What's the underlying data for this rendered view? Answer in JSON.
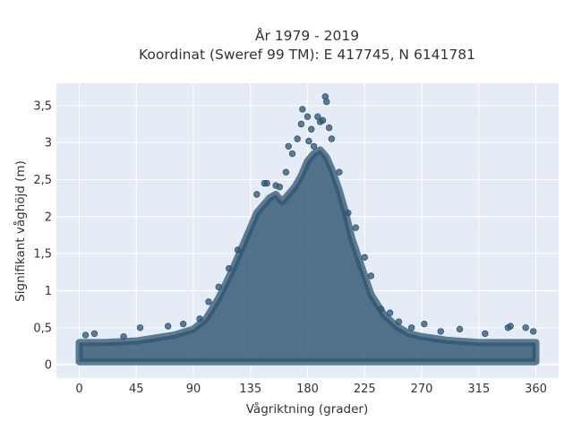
{
  "chart_data": {
    "type": "scatter",
    "title_line1": "År 1979 - 2019",
    "title_line2": "Koordinat (Sweref 99 TM): E 417745, N 6141781",
    "xlabel": "Vågriktning (grader)",
    "ylabel": "Signifikant våghöjd (m)",
    "xlim": [
      -18,
      378
    ],
    "ylim": [
      -0.18,
      3.8
    ],
    "x_ticks": [
      0,
      45,
      90,
      135,
      180,
      225,
      270,
      315,
      360
    ],
    "x_tick_labels": [
      "0",
      "45",
      "90",
      "135",
      "180",
      "225",
      "270",
      "315",
      "360"
    ],
    "y_ticks": [
      0,
      0.5,
      1,
      1.5,
      2,
      2.5,
      3,
      3.5
    ],
    "y_tick_labels": [
      "0",
      "0,5",
      "1",
      "1,5",
      "2",
      "2,5",
      "3",
      "3,5"
    ],
    "grid": true,
    "marker_color": "#2e5570",
    "envelope": {
      "x": [
        0,
        20,
        45,
        60,
        75,
        90,
        100,
        110,
        120,
        130,
        135,
        140,
        145,
        150,
        155,
        160,
        165,
        170,
        175,
        180,
        185,
        190,
        195,
        200,
        205,
        210,
        215,
        220,
        225,
        230,
        240,
        250,
        260,
        270,
        290,
        315,
        340,
        360
      ],
      "y": [
        0.3,
        0.3,
        0.32,
        0.36,
        0.4,
        0.48,
        0.62,
        0.9,
        1.25,
        1.65,
        1.85,
        2.05,
        2.15,
        2.25,
        2.3,
        2.2,
        2.3,
        2.4,
        2.55,
        2.75,
        2.85,
        2.9,
        2.8,
        2.6,
        2.35,
        2.05,
        1.7,
        1.45,
        1.2,
        0.95,
        0.68,
        0.52,
        0.42,
        0.38,
        0.33,
        0.3,
        0.3,
        0.3
      ]
    },
    "outliers": [
      {
        "x": 5,
        "y": 0.4
      },
      {
        "x": 12,
        "y": 0.42
      },
      {
        "x": 35,
        "y": 0.38
      },
      {
        "x": 48,
        "y": 0.5
      },
      {
        "x": 70,
        "y": 0.52
      },
      {
        "x": 82,
        "y": 0.55
      },
      {
        "x": 95,
        "y": 0.62
      },
      {
        "x": 102,
        "y": 0.85
      },
      {
        "x": 110,
        "y": 1.05
      },
      {
        "x": 118,
        "y": 1.3
      },
      {
        "x": 125,
        "y": 1.55
      },
      {
        "x": 140,
        "y": 2.3
      },
      {
        "x": 146,
        "y": 2.45
      },
      {
        "x": 148,
        "y": 2.45
      },
      {
        "x": 155,
        "y": 2.42
      },
      {
        "x": 158,
        "y": 2.4
      },
      {
        "x": 163,
        "y": 2.6
      },
      {
        "x": 165,
        "y": 2.95
      },
      {
        "x": 168,
        "y": 2.85
      },
      {
        "x": 172,
        "y": 3.05
      },
      {
        "x": 175,
        "y": 3.25
      },
      {
        "x": 176,
        "y": 3.45
      },
      {
        "x": 180,
        "y": 3.35
      },
      {
        "x": 181,
        "y": 3.02
      },
      {
        "x": 183,
        "y": 3.18
      },
      {
        "x": 185,
        "y": 2.95
      },
      {
        "x": 188,
        "y": 3.35
      },
      {
        "x": 190,
        "y": 3.28
      },
      {
        "x": 192,
        "y": 3.3
      },
      {
        "x": 194,
        "y": 3.62
      },
      {
        "x": 195,
        "y": 3.55
      },
      {
        "x": 197,
        "y": 3.2
      },
      {
        "x": 199,
        "y": 3.05
      },
      {
        "x": 205,
        "y": 2.6
      },
      {
        "x": 212,
        "y": 2.05
      },
      {
        "x": 218,
        "y": 1.85
      },
      {
        "x": 225,
        "y": 1.45
      },
      {
        "x": 230,
        "y": 1.2
      },
      {
        "x": 238,
        "y": 0.75
      },
      {
        "x": 245,
        "y": 0.7
      },
      {
        "x": 252,
        "y": 0.58
      },
      {
        "x": 262,
        "y": 0.5
      },
      {
        "x": 272,
        "y": 0.55
      },
      {
        "x": 285,
        "y": 0.45
      },
      {
        "x": 300,
        "y": 0.48
      },
      {
        "x": 320,
        "y": 0.42
      },
      {
        "x": 338,
        "y": 0.5
      },
      {
        "x": 340,
        "y": 0.52
      },
      {
        "x": 352,
        "y": 0.5
      },
      {
        "x": 358,
        "y": 0.45
      }
    ]
  }
}
